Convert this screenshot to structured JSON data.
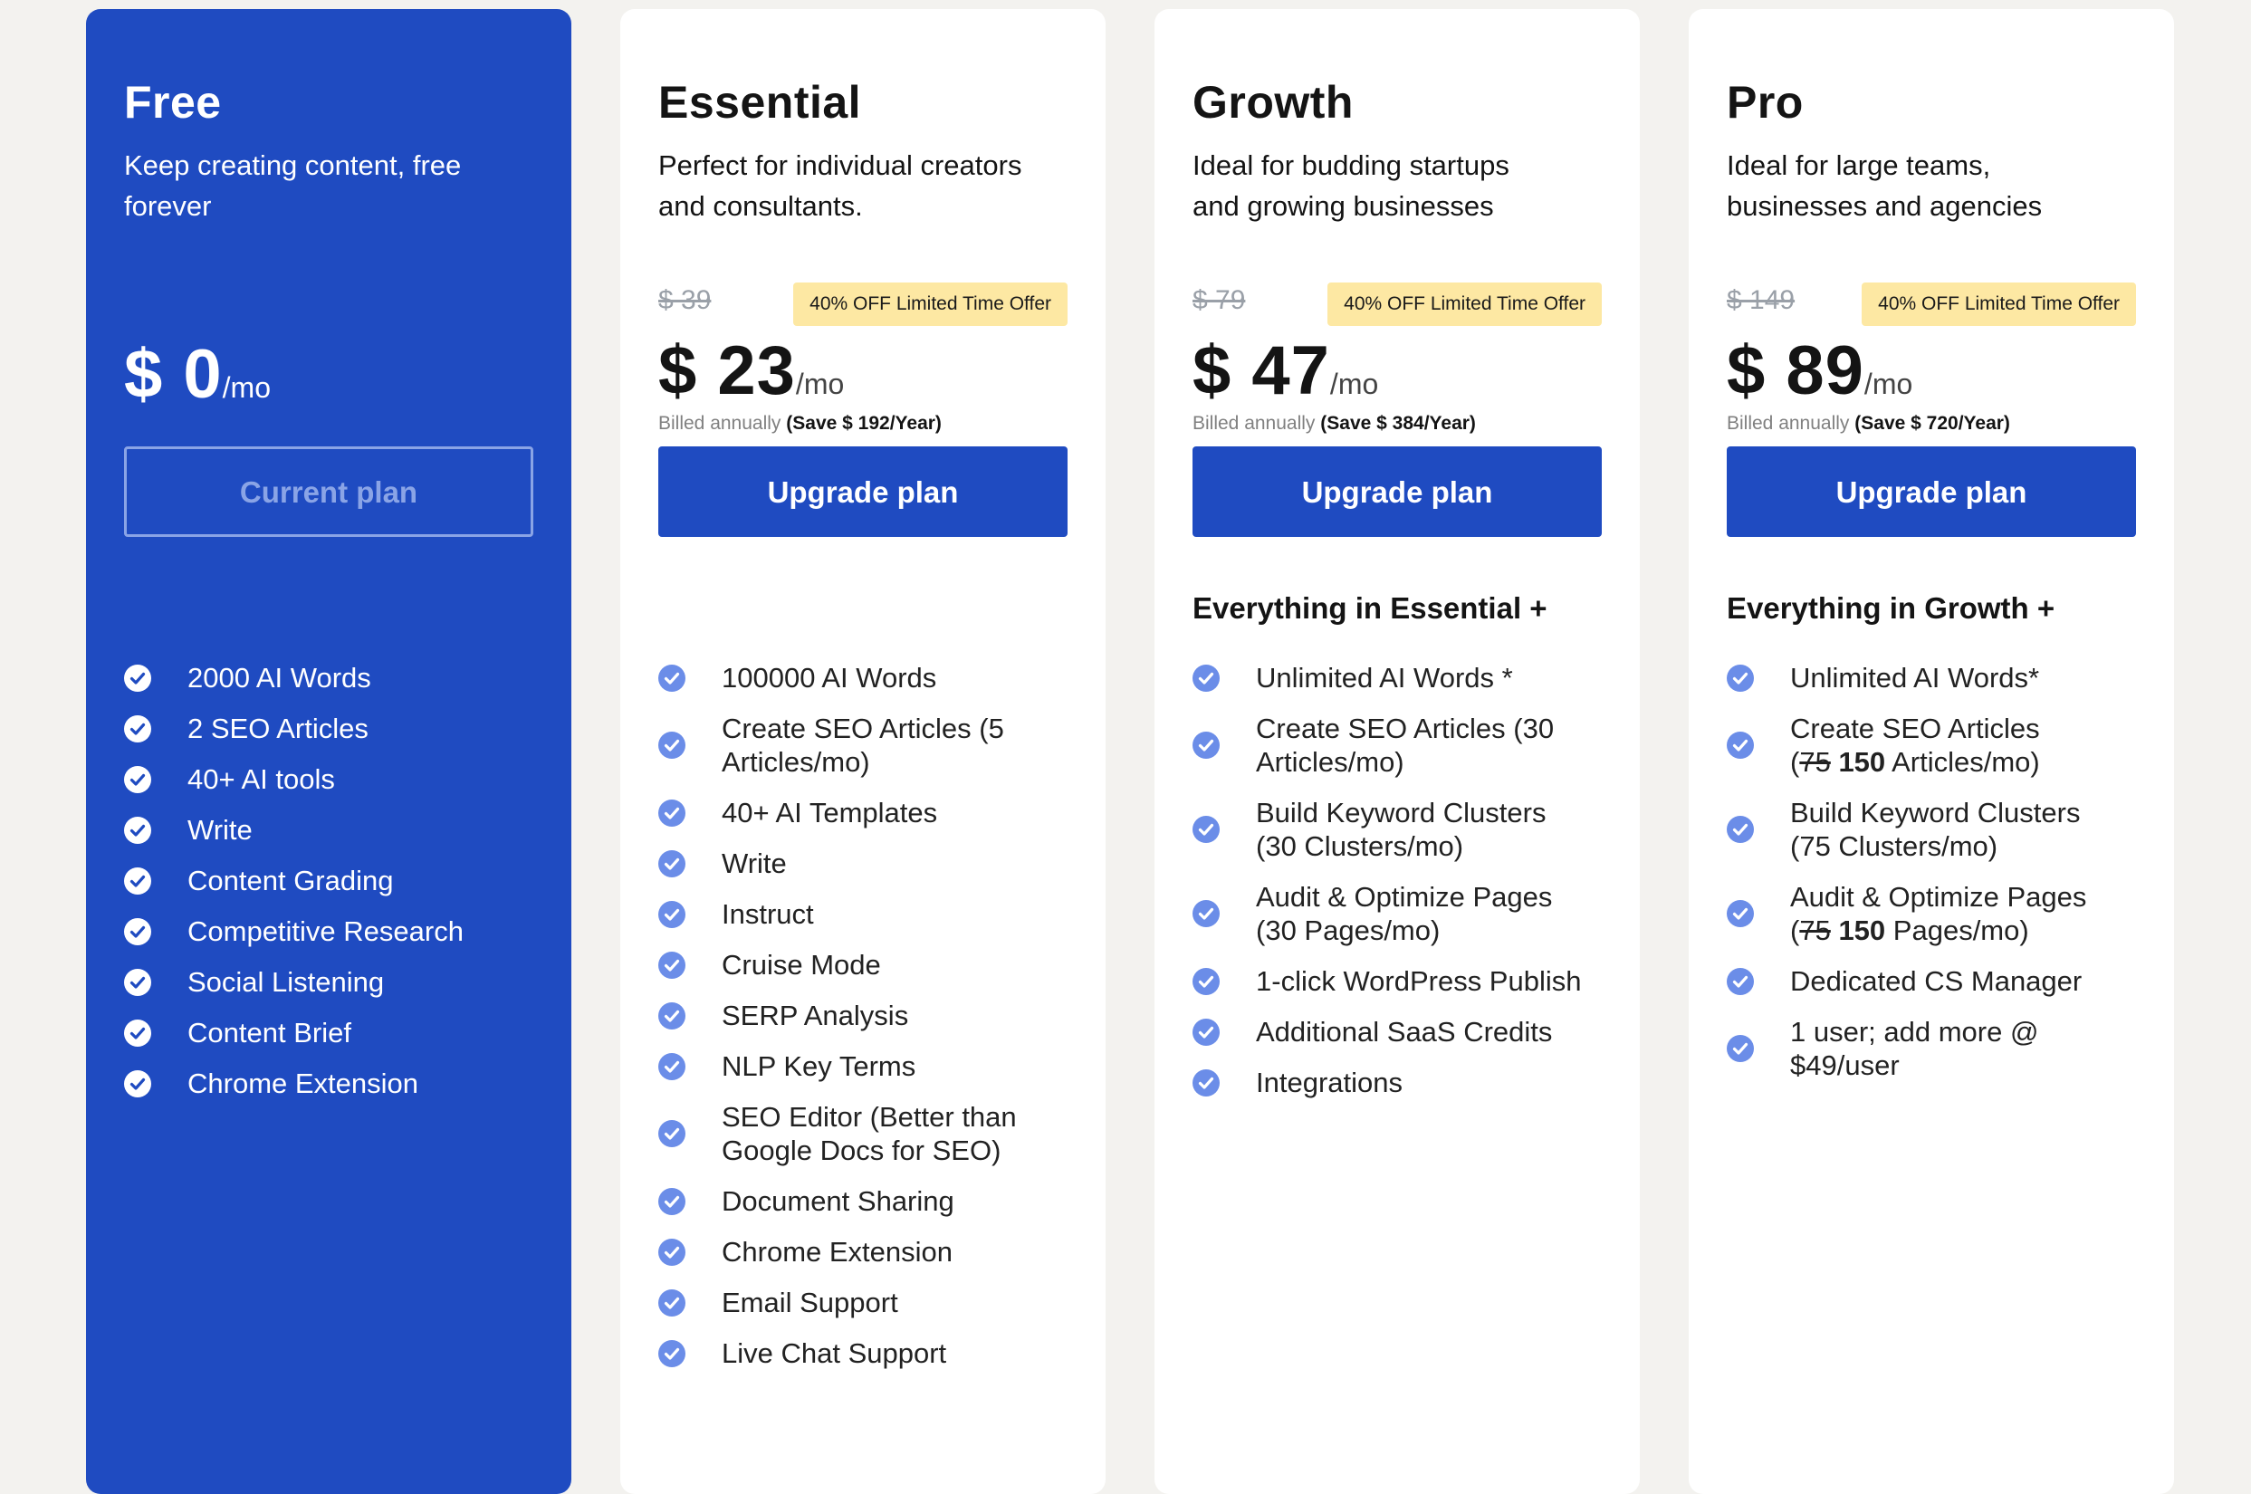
{
  "plans": [
    {
      "name": "Free",
      "description": "Keep creating content, free forever",
      "price": "$ 0",
      "unit": "/mo",
      "button": "Current plan",
      "features": [
        "2000 AI Words",
        "2 SEO Articles",
        "40+ AI tools",
        "Write",
        "Content Grading",
        "Competitive Research",
        "Social Listening",
        "Content Brief",
        "Chrome Extension"
      ]
    },
    {
      "name": "Essential",
      "description": "Perfect for individual creators and consultants.",
      "old_price": "$ 39",
      "offer": "40% OFF Limited Time Offer",
      "price": "$ 23",
      "unit": "/mo",
      "billing": "Billed annually",
      "save": "(Save $ 192/Year)",
      "button": "Upgrade plan",
      "features": [
        "100000 AI Words",
        "Create SEO Articles (5 Articles/mo)",
        "40+ AI Templates",
        "Write",
        "Instruct",
        "Cruise Mode",
        "SERP Analysis",
        "NLP Key Terms",
        "SEO Editor (Better than Google Docs for SEO)",
        "Document Sharing",
        "Chrome Extension",
        "Email Support",
        "Live Chat Support"
      ]
    },
    {
      "name": "Growth",
      "description": "Ideal for budding startups and growing businesses",
      "old_price": "$ 79",
      "offer": "40% OFF Limited Time Offer",
      "price": "$ 47",
      "unit": "/mo",
      "billing": "Billed annually",
      "save": "(Save $ 384/Year)",
      "button": "Upgrade plan",
      "everything": "Everything in Essential +",
      "features": [
        "Unlimited AI Words *",
        "Create SEO Articles (30 Articles/mo)",
        "Build Keyword Clusters (30 Clusters/mo)",
        "Audit & Optimize Pages (30 Pages/mo)",
        "1-click WordPress Publish",
        "Additional SaaS Credits",
        "Integrations"
      ]
    },
    {
      "name": "Pro",
      "description": "Ideal for large teams, businesses and agencies",
      "old_price": "$ 149",
      "offer": "40% OFF Limited Time Offer",
      "price": "$ 89",
      "unit": "/mo",
      "billing": "Billed annually",
      "save": "(Save $ 720/Year)",
      "button": "Upgrade plan",
      "everything": "Everything in Growth +",
      "features": [
        "Unlimited AI Words*",
        "Create SEO Articles",
        "Build Keyword Clusters (75 Clusters/mo)",
        "Audit & Optimize Pages",
        "Dedicated CS Manager",
        "1 user; add more @ $49/user"
      ],
      "articles_line": {
        "open": "(",
        "old": "75",
        "new": "150",
        "rest": "Articles/mo)"
      },
      "pages_line": {
        "open": "(",
        "old": "75",
        "new": "150",
        "rest": "Pages/mo)"
      }
    }
  ],
  "colors": {
    "brand_blue": "#1f4bc1",
    "check_blue": "#6b8de8",
    "offer_yellow": "#fde8a3",
    "page_bg": "#f3f2ef"
  }
}
